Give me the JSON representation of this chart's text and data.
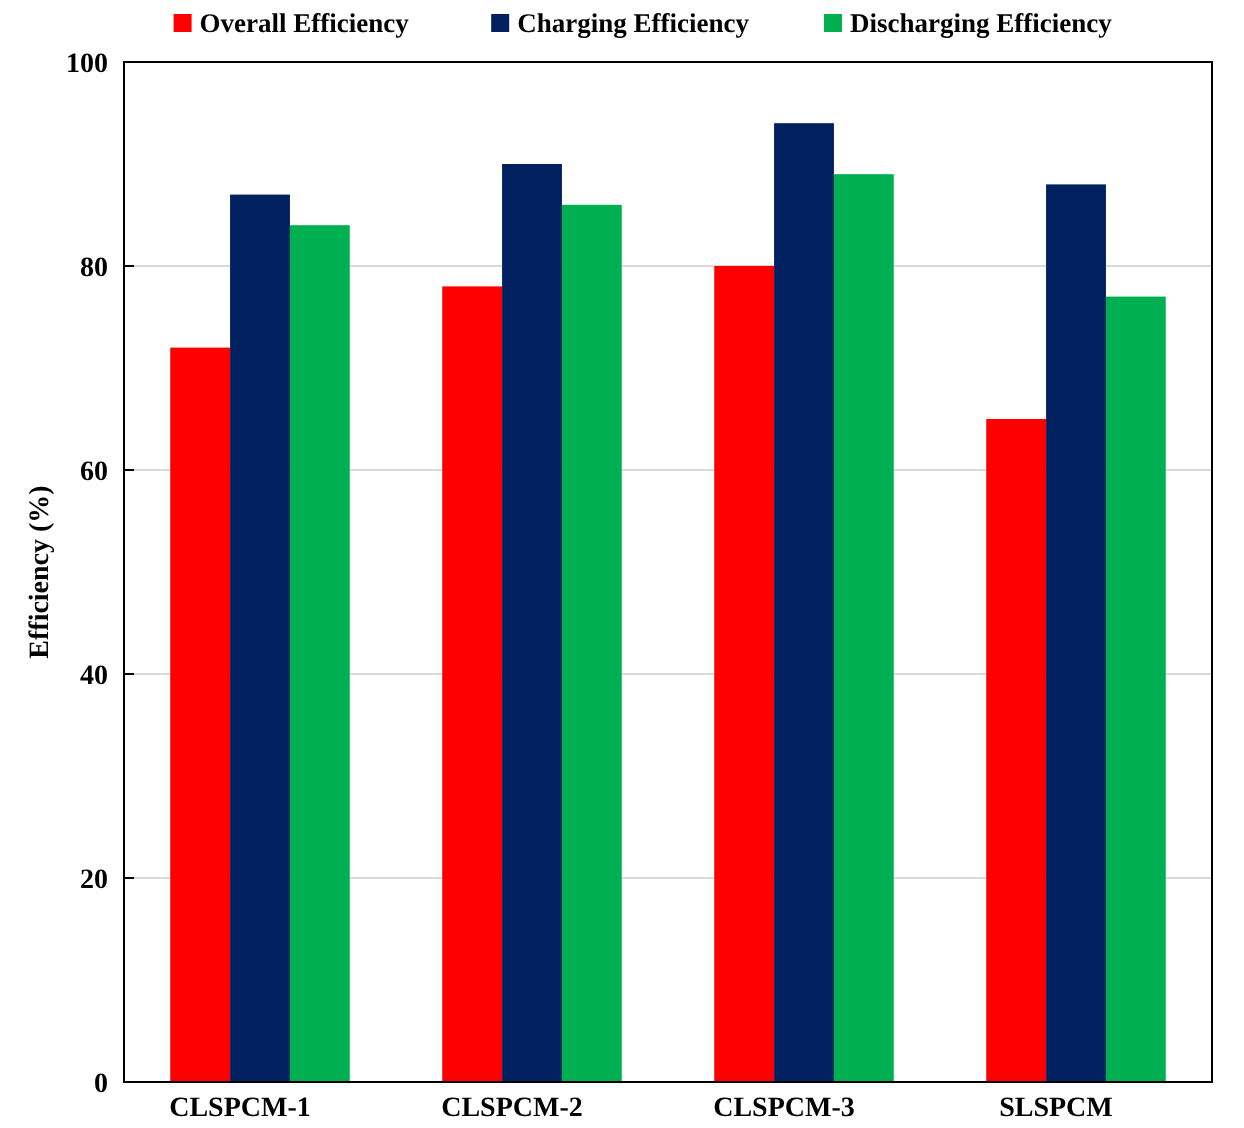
{
  "chart_data": {
    "type": "bar",
    "ylabel": "Efficiency (%)",
    "categories": [
      "CLSPCM-1",
      "CLSPCM-2",
      "CLSPCM-3",
      "SLSPCM"
    ],
    "series": [
      {
        "name": "Overall Efficiency",
        "color": "#ff0000",
        "values": [
          72,
          78,
          80,
          65
        ]
      },
      {
        "name": "Charging Efficiency",
        "color": "#002060",
        "values": [
          87,
          90,
          94,
          88
        ]
      },
      {
        "name": "Discharging Efficiency",
        "color": "#00b050",
        "values": [
          84,
          86,
          89,
          77
        ]
      }
    ],
    "ylim": [
      0,
      100
    ],
    "yticks": [
      0,
      20,
      40,
      60,
      80,
      100
    ],
    "grid": "y",
    "legend": "top"
  }
}
